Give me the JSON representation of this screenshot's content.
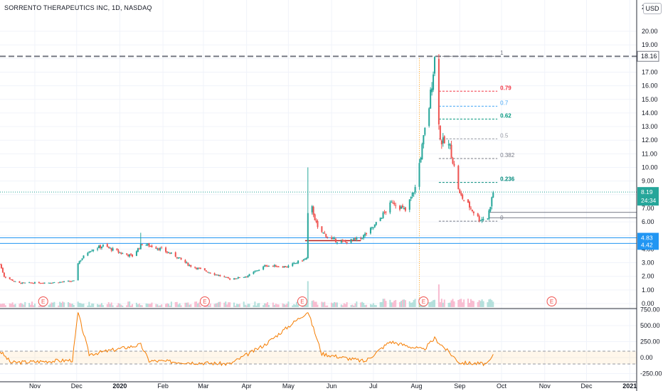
{
  "header": {
    "symbol_title": "SORRENTO THERAPEUTICS INC, 1D, NASDAQ",
    "currency": "USD"
  },
  "price_axis": {
    "ticks": [
      "20.00",
      "19.00",
      "18.00",
      "17.00",
      "16.00",
      "15.00",
      "14.00",
      "13.00",
      "12.00",
      "11.00",
      "10.00",
      "9.00",
      "8.00",
      "7.00",
      "6.00",
      "5.00",
      "4.00",
      "3.00",
      "2.00",
      "1.00",
      "0.00"
    ],
    "top_label": "2"
  },
  "oscillator_axis": {
    "ticks": [
      "750.00",
      "500.00",
      "250.00",
      "0.00",
      "-250.00"
    ]
  },
  "time_axis": {
    "labels": [
      "Nov",
      "Dec",
      "2020",
      "Feb",
      "Mar",
      "Apr",
      "May",
      "Jun",
      "Jul",
      "Aug",
      "Sep",
      "Oct",
      "Nov",
      "Dec",
      "2021"
    ]
  },
  "price_tags": {
    "resistance": "18.16",
    "last_price": "8.19",
    "countdown": "24:34",
    "support_upper": "4.83",
    "support_lower": "4.42"
  },
  "fib_levels": [
    {
      "ratio": "1",
      "price": 18.16,
      "color": "#787b86"
    },
    {
      "ratio": "0.79",
      "price": 15.6,
      "color": "#f23645"
    },
    {
      "ratio": "0.7",
      "price": 14.5,
      "color": "#42a5f5"
    },
    {
      "ratio": "0.62",
      "price": 13.55,
      "color": "#089981"
    },
    {
      "ratio": "0.5",
      "price": 12.1,
      "color": "#9598a1"
    },
    {
      "ratio": "0.382",
      "price": 10.65,
      "color": "#787b86"
    },
    {
      "ratio": "0.236",
      "price": 8.9,
      "color": "#00897b"
    },
    {
      "ratio": "0",
      "price": 6.05,
      "color": "#787b86"
    }
  ],
  "earnings_marker": "E",
  "colors": {
    "up": "#26a69a",
    "down": "#ef5350",
    "support": "#2196f3",
    "oscillator": "#f57c00",
    "resistance": "#787b86"
  },
  "chart_data": {
    "type": "candlestick",
    "x_range": [
      "2019-10-07",
      "2021-01-06"
    ],
    "y_range": [
      -0.5,
      21
    ],
    "resistance_level": 18.16,
    "support_levels": [
      4.83,
      4.42
    ],
    "last_price": 8.19,
    "earnings_dates": [
      "2019-11-07",
      "2020-03-02",
      "2020-05-11",
      "2020-08-06",
      "2020-11-06"
    ],
    "price_anchors": [
      {
        "date": "2019-10-07",
        "price": 2.9
      },
      {
        "date": "2019-10-10",
        "price": 2.0
      },
      {
        "date": "2019-10-20",
        "price": 1.5
      },
      {
        "date": "2019-11-15",
        "price": 1.55
      },
      {
        "date": "2019-11-29",
        "price": 1.65
      },
      {
        "date": "2019-12-02",
        "price": 3.0
      },
      {
        "date": "2019-12-10",
        "price": 3.9
      },
      {
        "date": "2019-12-20",
        "price": 4.25
      },
      {
        "date": "2020-01-02",
        "price": 3.7
      },
      {
        "date": "2020-01-10",
        "price": 3.5
      },
      {
        "date": "2020-01-17",
        "price": 4.4
      },
      {
        "date": "2020-01-28",
        "price": 4.1
      },
      {
        "date": "2020-02-10",
        "price": 3.5
      },
      {
        "date": "2020-02-20",
        "price": 2.8
      },
      {
        "date": "2020-03-05",
        "price": 2.3
      },
      {
        "date": "2020-03-20",
        "price": 1.8
      },
      {
        "date": "2020-04-01",
        "price": 2.0
      },
      {
        "date": "2020-04-15",
        "price": 2.8
      },
      {
        "date": "2020-04-30",
        "price": 2.7
      },
      {
        "date": "2020-05-11",
        "price": 3.2
      },
      {
        "date": "2020-05-14",
        "price": 3.3
      },
      {
        "date": "2020-05-15",
        "price": 6.5
      },
      {
        "date": "2020-05-18",
        "price": 7.0
      },
      {
        "date": "2020-05-22",
        "price": 5.5
      },
      {
        "date": "2020-06-01",
        "price": 4.7
      },
      {
        "date": "2020-06-10",
        "price": 4.5
      },
      {
        "date": "2020-06-22",
        "price": 4.8
      },
      {
        "date": "2020-07-01",
        "price": 5.6
      },
      {
        "date": "2020-07-15",
        "price": 7.5
      },
      {
        "date": "2020-07-24",
        "price": 6.8
      },
      {
        "date": "2020-07-31",
        "price": 8.5
      },
      {
        "date": "2020-08-05",
        "price": 11.5
      },
      {
        "date": "2020-08-10",
        "price": 14.5
      },
      {
        "date": "2020-08-14",
        "price": 18.0
      },
      {
        "date": "2020-08-18",
        "price": 12.0
      },
      {
        "date": "2020-08-25",
        "price": 11.5
      },
      {
        "date": "2020-09-01",
        "price": 8.0
      },
      {
        "date": "2020-09-09",
        "price": 7.0
      },
      {
        "date": "2020-09-15",
        "price": 6.2
      },
      {
        "date": "2020-09-21",
        "price": 6.3
      },
      {
        "date": "2020-09-25",
        "price": 8.19
      }
    ],
    "spikes": [
      {
        "date": "2020-01-16",
        "high": 5.2
      },
      {
        "date": "2020-05-15",
        "high": 10.0
      },
      {
        "date": "2020-08-15",
        "high": 19.4
      }
    ],
    "oscillator_anchors": [
      {
        "date": "2019-10-07",
        "value": 100
      },
      {
        "date": "2019-10-15",
        "value": -80
      },
      {
        "date": "2019-11-28",
        "value": -40
      },
      {
        "date": "2019-12-02",
        "value": 700
      },
      {
        "date": "2019-12-10",
        "value": 50
      },
      {
        "date": "2020-01-16",
        "value": 200
      },
      {
        "date": "2020-01-22",
        "value": -50
      },
      {
        "date": "2020-03-20",
        "value": -100
      },
      {
        "date": "2020-04-14",
        "value": 200
      },
      {
        "date": "2020-05-15",
        "value": 720
      },
      {
        "date": "2020-05-25",
        "value": 60
      },
      {
        "date": "2020-06-25",
        "value": -60
      },
      {
        "date": "2020-07-13",
        "value": 250
      },
      {
        "date": "2020-08-06",
        "value": 120
      },
      {
        "date": "2020-08-14",
        "value": 300
      },
      {
        "date": "2020-09-01",
        "value": -80
      },
      {
        "date": "2020-09-21",
        "value": -100
      },
      {
        "date": "2020-09-25",
        "value": 30
      }
    ],
    "oscillator_band": [
      -100,
      100
    ]
  }
}
